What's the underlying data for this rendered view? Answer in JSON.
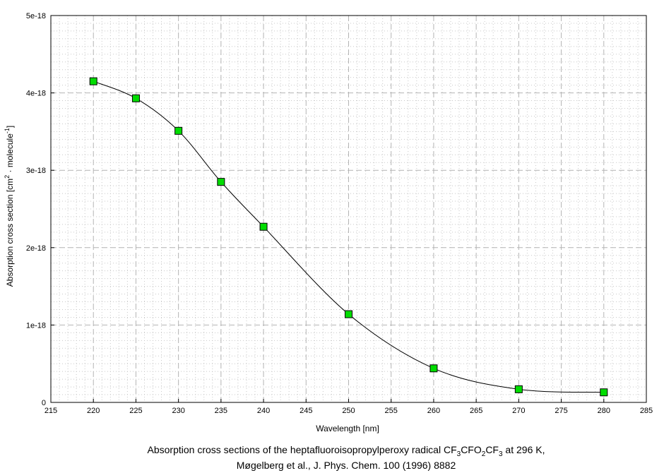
{
  "chart_data": {
    "type": "line",
    "title": "",
    "xlabel": "Wavelength [nm]",
    "ylabel": {
      "prefix": "Absorption cross section [cm",
      "sup1": "2",
      "middle": " · molecule",
      "sup2": "-1",
      "suffix": "]"
    },
    "xlim": [
      215,
      285
    ],
    "ylim": [
      0,
      5e-18
    ],
    "grid": true,
    "x_ticks": [
      215,
      220,
      225,
      230,
      235,
      240,
      245,
      250,
      255,
      260,
      265,
      270,
      275,
      280,
      285
    ],
    "x_tick_labels": [
      "215",
      "220",
      "225",
      "230",
      "235",
      "240",
      "245",
      "250",
      "255",
      "260",
      "265",
      "270",
      "275",
      "280",
      "285"
    ],
    "y_ticks": [
      0,
      1e-18,
      2e-18,
      3e-18,
      4e-18,
      5e-18
    ],
    "y_tick_labels": [
      "0",
      "1e-18",
      "2e-18",
      "3e-18",
      "4e-18",
      "5e-18"
    ],
    "series": [
      {
        "x": [
          220,
          225,
          230,
          235,
          240,
          250,
          260,
          270,
          280
        ],
        "values": [
          4.15e-18,
          3.93e-18,
          3.51e-18,
          2.85e-18,
          2.27e-18,
          1.14e-18,
          4.4e-19,
          1.7e-19,
          1.3e-19
        ],
        "line_color": "#000000",
        "marker": "square",
        "marker_color": "#00dd00"
      }
    ],
    "caption": {
      "line1_prefix": "Absorption cross sections of the heptafluoroisopropylperoxy radical CF",
      "line1_sub1": "3",
      "line1_mid1": "CFO",
      "line1_sub2": "2",
      "line1_mid2": "CF",
      "line1_sub3": "3",
      "line1_suffix": " at 296 K,",
      "line2": "Møgelberg et al., J. Phys. Chem. 100 (1996) 8882"
    }
  }
}
